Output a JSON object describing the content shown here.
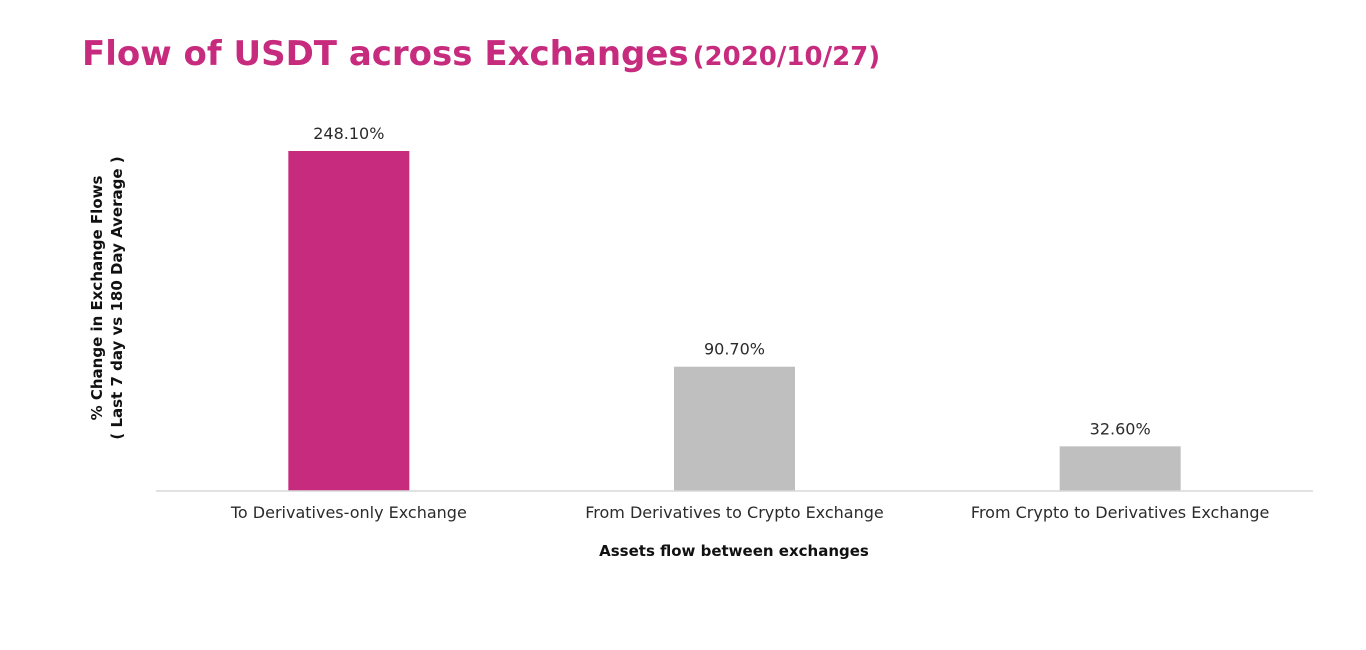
{
  "title": "Flow of USDT across Exchanges",
  "title_date": "(2020/10/27)",
  "colors": {
    "title": "#c72b7e",
    "highlight_bar": "#c72b7e",
    "other_bars": "#bfbfbf",
    "axis": "#d9d9d9"
  },
  "chart_data": {
    "type": "bar",
    "title": "Flow of USDT across Exchanges (2020/10/27)",
    "categories": [
      "To Derivatives-only Exchange",
      "From Derivatives to Crypto Exchange",
      "From Crypto to Derivatives Exchange"
    ],
    "values": [
      248.1,
      90.7,
      32.6
    ],
    "data_labels": [
      "248.10%",
      "90.70%",
      "32.60%"
    ],
    "bar_colors": [
      "#c72b7e",
      "#bfbfbf",
      "#bfbfbf"
    ],
    "xlabel": "Assets flow between exchanges",
    "ylabel_line1": "% Change in Exchange Flows",
    "ylabel_line2": "( Last 7 day vs 180 Day Average )",
    "ylim": [
      0,
      248.1
    ],
    "grid": false,
    "legend": "none"
  }
}
